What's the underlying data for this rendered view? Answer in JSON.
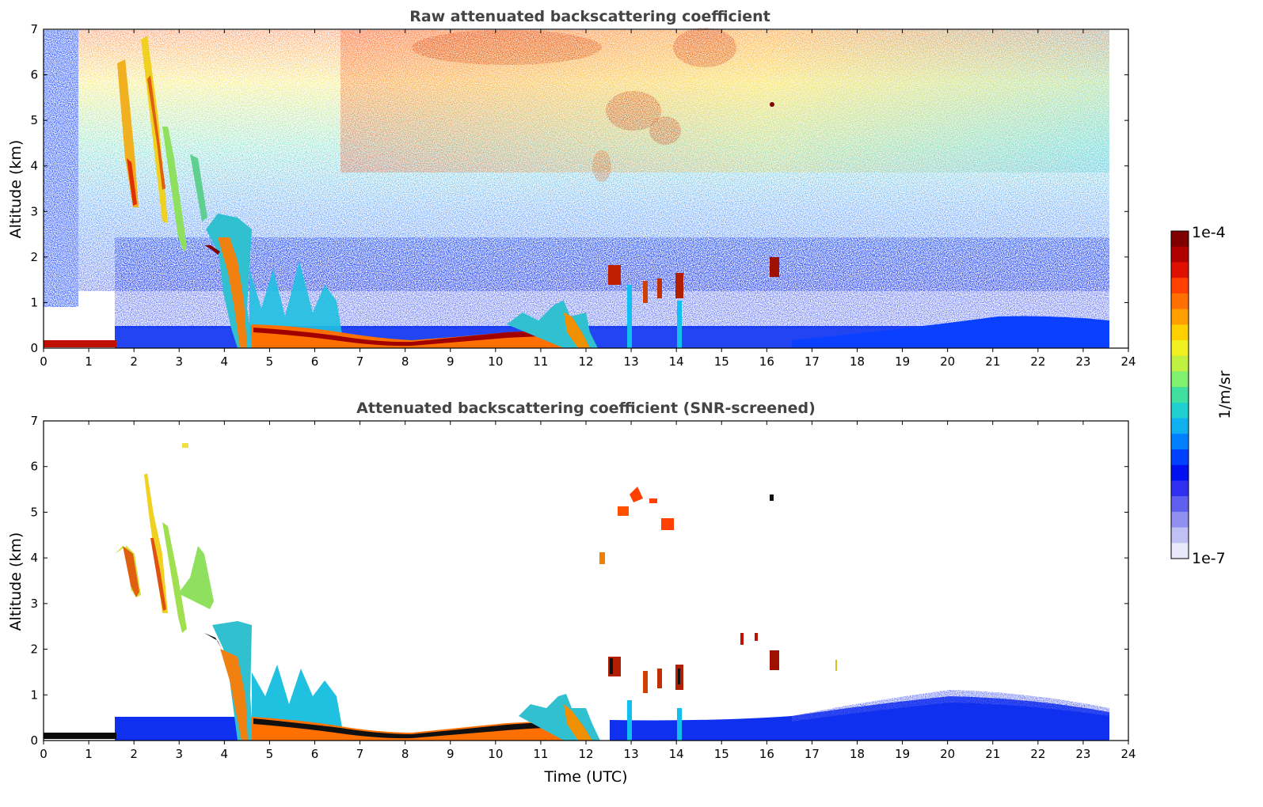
{
  "chart_data": [
    {
      "type": "heatmap",
      "title": "Raw attenuated backscattering coefficient",
      "xlabel": "",
      "ylabel": "Altitude (km)",
      "xlim": [
        0,
        24
      ],
      "ylim": [
        0,
        7
      ],
      "xticks": [
        "0",
        "1",
        "2",
        "3",
        "4",
        "5",
        "6",
        "7",
        "8",
        "9",
        "10",
        "11",
        "12",
        "13",
        "14",
        "15",
        "16",
        "17",
        "18",
        "19",
        "20",
        "21",
        "22",
        "23",
        "24"
      ],
      "yticks": [
        "0",
        "1",
        "2",
        "3",
        "4",
        "5",
        "6",
        "7"
      ],
      "data_end_time": 23.6,
      "features": [
        {
          "name": "surface aerosol layer",
          "t": [
            0,
            1.6
          ],
          "alt": [
            0.05,
            0.2
          ],
          "level": 0.9
        },
        {
          "name": "boundary layer top",
          "t": [
            4.6,
            11.2
          ],
          "alt": [
            0.15,
            0.45
          ],
          "level": 1.0
        },
        {
          "name": "descending virga",
          "t": [
            1.7,
            4.6
          ],
          "alt": [
            0.0,
            6.5
          ],
          "level": 0.75
        },
        {
          "name": "mid-level cloud",
          "t": [
            12.4,
            14.1
          ],
          "alt": [
            1.0,
            1.9
          ],
          "level": 0.95
        },
        {
          "name": "upper noise",
          "t": [
            0.8,
            23.6
          ],
          "alt": [
            2.5,
            7.0
          ],
          "level": 0.6
        }
      ]
    },
    {
      "type": "heatmap",
      "title": "Attenuated backscattering coefficient (SNR-screened)",
      "xlabel": "Time (UTC)",
      "ylabel": "Altitude (km)",
      "xlim": [
        0,
        24
      ],
      "ylim": [
        0,
        7
      ],
      "xticks": [
        "0",
        "1",
        "2",
        "3",
        "4",
        "5",
        "6",
        "7",
        "8",
        "9",
        "10",
        "11",
        "12",
        "13",
        "14",
        "15",
        "16",
        "17",
        "18",
        "19",
        "20",
        "21",
        "22",
        "23",
        "24"
      ],
      "yticks": [
        "0",
        "1",
        "2",
        "3",
        "4",
        "5",
        "6",
        "7"
      ],
      "data_end_time": 23.6,
      "features": [
        {
          "name": "surface aerosol layer",
          "t": [
            0,
            1.6
          ],
          "alt": [
            0.05,
            0.15
          ],
          "level": 0.9
        },
        {
          "name": "boundary layer top",
          "t": [
            4.6,
            11.2
          ],
          "alt": [
            0.15,
            0.45
          ],
          "level": 1.0
        },
        {
          "name": "descending virga",
          "t": [
            1.7,
            4.6
          ],
          "alt": [
            0.0,
            6.5
          ],
          "level": 0.7
        },
        {
          "name": "mid-level cloud",
          "t": [
            12.4,
            14.1
          ],
          "alt": [
            1.0,
            1.9
          ],
          "level": 0.95
        },
        {
          "name": "elevated cloud",
          "t": [
            12.9,
            14.3
          ],
          "alt": [
            4.6,
            5.6
          ],
          "level": 0.85
        },
        {
          "name": "evening boundary layer",
          "t": [
            17.0,
            23.6
          ],
          "alt": [
            0.0,
            1.2
          ],
          "level": 0.3
        }
      ]
    }
  ],
  "colorbar": {
    "label": "1/m/sr",
    "max_label": "1e-4",
    "min_label": "1e-7",
    "colors": [
      "#800000",
      "#b00000",
      "#e01000",
      "#ff4000",
      "#ff7000",
      "#ffa000",
      "#ffd000",
      "#f0f020",
      "#c0f040",
      "#80f070",
      "#40e0a0",
      "#20d0d0",
      "#10b0f0",
      "#0080ff",
      "#0040ff",
      "#0010f0",
      "#3030f0",
      "#6060f0",
      "#9090f0",
      "#c0c0f5",
      "#e8e8fa"
    ]
  }
}
